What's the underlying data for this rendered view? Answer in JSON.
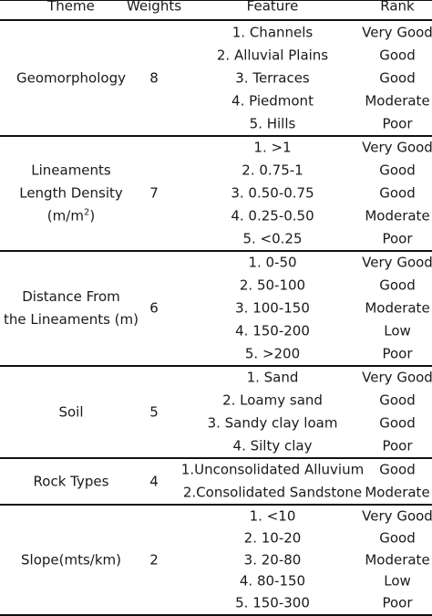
{
  "headers": {
    "theme": "Theme",
    "weights": "Weights",
    "feature": "Feature",
    "rank": "Rank"
  },
  "groups": [
    {
      "theme_lines": [
        "Geomorphology"
      ],
      "weight": "8",
      "rows": [
        {
          "feature": "1. Channels",
          "rank": "Very Good"
        },
        {
          "feature": "2. Alluvial Plains",
          "rank": "Good"
        },
        {
          "feature": "3. Terraces",
          "rank": "Good"
        },
        {
          "feature": "4. Piedmont",
          "rank": "Moderate"
        },
        {
          "feature": "5. Hills",
          "rank": "Poor"
        }
      ]
    },
    {
      "theme_lines": [
        "Lineaments",
        "Length Density"
      ],
      "theme_unit": {
        "base": "(m/m",
        "sup": "2",
        "close": ")"
      },
      "weight": "7",
      "rows": [
        {
          "feature": "1. >1",
          "rank": "Very Good"
        },
        {
          "feature": "2. 0.75-1",
          "rank": "Good"
        },
        {
          "feature": "3. 0.50-0.75",
          "rank": "Good"
        },
        {
          "feature": "4. 0.25-0.50",
          "rank": "Moderate"
        },
        {
          "feature": "5. <0.25",
          "rank": "Poor"
        }
      ]
    },
    {
      "theme_lines": [
        "Distance From",
        "the Lineaments (m)"
      ],
      "weight": "6",
      "rows": [
        {
          "feature": "1. 0-50",
          "rank": "Very Good"
        },
        {
          "feature": "2. 50-100",
          "rank": "Good"
        },
        {
          "feature": "3. 100-150",
          "rank": "Moderate"
        },
        {
          "feature": "4. 150-200",
          "rank": "Low"
        },
        {
          "feature": "5. >200",
          "rank": "Poor"
        }
      ]
    },
    {
      "theme_lines": [
        "Soil"
      ],
      "weight": "5",
      "rows": [
        {
          "feature": "1. Sand",
          "rank": "Very Good"
        },
        {
          "feature": "2. Loamy sand",
          "rank": "Good"
        },
        {
          "feature": "3. Sandy clay loam",
          "rank": "Good"
        },
        {
          "feature": "4. Silty clay",
          "rank": "Poor"
        }
      ]
    },
    {
      "theme_lines": [
        "Rock Types"
      ],
      "weight": "4",
      "rows": [
        {
          "feature": "1.Unconsolidated Alluvium",
          "rank": "Good"
        },
        {
          "feature": "2.Consolidated Sandstone",
          "rank": "Moderate"
        }
      ]
    },
    {
      "theme_lines": [
        "Slope(mts/km)"
      ],
      "weight": "2",
      "rows": [
        {
          "feature": "1. <10",
          "rank": "Very Good"
        },
        {
          "feature": "2. 10-20",
          "rank": "Good"
        },
        {
          "feature": "3. 20-80",
          "rank": "Moderate"
        },
        {
          "feature": "4. 80-150",
          "rank": "Low"
        },
        {
          "feature": "5. 150-300",
          "rank": "Poor"
        }
      ]
    }
  ]
}
